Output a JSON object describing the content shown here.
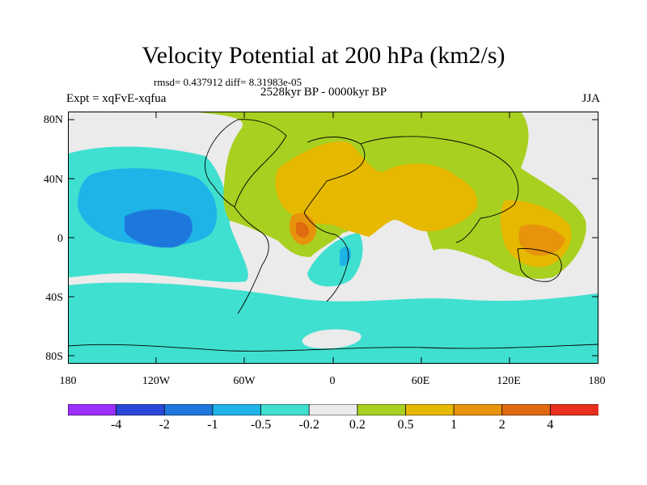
{
  "title": "Velocity Potential at 200 hPa (km2/s)",
  "stats_line": "rmsd= 0.437912 diff= 8.31983e-05",
  "period_line": "2528kyr BP - 0000kyr BP",
  "experiment": "Expt = xqFvE-xqfua",
  "season": "JJA",
  "lat_labels": [
    "80N",
    "40N",
    "0",
    "40S",
    "80S"
  ],
  "lon_labels": [
    "180",
    "120W",
    "60W",
    "0",
    "60E",
    "120E",
    "180"
  ],
  "colorbar": {
    "colors": [
      "#9b30ff",
      "#2a48d8",
      "#1e78dc",
      "#1fb4e8",
      "#40e0d0",
      "#ebebeb",
      "#a8d020",
      "#e6b800",
      "#e8930c",
      "#e06a10",
      "#e8301c"
    ],
    "labels": [
      "-4",
      "-2",
      "-1",
      "-0.5",
      "-0.2",
      "0.2",
      "0.5",
      "1",
      "2",
      "4"
    ]
  },
  "colors": {
    "neutral": "#ebebeb",
    "teal": "#40e0d0",
    "cyan": "#1fb4e8",
    "blue": "#1e78dc",
    "green": "#a8d020",
    "yellow": "#e6b800",
    "orange": "#e8930c",
    "darkorange": "#e06a10"
  }
}
